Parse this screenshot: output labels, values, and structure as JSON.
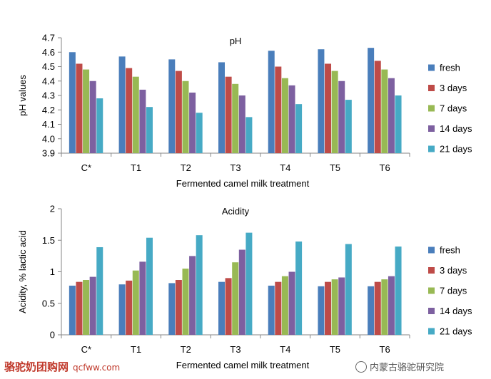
{
  "colors": {
    "fresh": "#4a7ebb",
    "3 days": "#be4b48",
    "7 days": "#98b954",
    "14 days": "#7d60a0",
    "21 days": "#46aac5",
    "axis": "#868686",
    "text": "#000000"
  },
  "chart_data": [
    {
      "type": "bar",
      "title": "pH",
      "xlabel": "Fermented camel milk treatment",
      "ylabel": "pH values",
      "categories": [
        "C*",
        "T1",
        "T2",
        "T3",
        "T4",
        "T5",
        "T6"
      ],
      "ylim": [
        3.9,
        4.7
      ],
      "yticks": [
        "3.9",
        "4.0",
        "4.1",
        "4.2",
        "4.3",
        "4.4",
        "4.5",
        "4.6",
        "4.7"
      ],
      "legend_position": "right",
      "grid": false,
      "series": [
        {
          "name": "fresh",
          "values": [
            4.6,
            4.57,
            4.55,
            4.53,
            4.61,
            4.62,
            4.63
          ]
        },
        {
          "name": "3 days",
          "values": [
            4.52,
            4.49,
            4.47,
            4.43,
            4.5,
            4.52,
            4.54
          ]
        },
        {
          "name": "7 days",
          "values": [
            4.48,
            4.43,
            4.4,
            4.38,
            4.42,
            4.47,
            4.48
          ]
        },
        {
          "name": "14 days",
          "values": [
            4.4,
            4.34,
            4.32,
            4.3,
            4.37,
            4.4,
            4.42
          ]
        },
        {
          "name": "21 days",
          "values": [
            4.28,
            4.22,
            4.18,
            4.15,
            4.24,
            4.27,
            4.3
          ]
        }
      ]
    },
    {
      "type": "bar",
      "title": "Acidity",
      "xlabel": "Fermented camel milk treatment",
      "ylabel": "Acidity, % lactic acid",
      "categories": [
        "C*",
        "T1",
        "T2",
        "T3",
        "T4",
        "T5",
        "T6"
      ],
      "ylim": [
        0,
        2
      ],
      "yticks": [
        "0",
        "0.5",
        "1",
        "1.5",
        "2"
      ],
      "legend_position": "right",
      "grid": false,
      "series": [
        {
          "name": "fresh",
          "values": [
            0.78,
            0.8,
            0.82,
            0.84,
            0.78,
            0.77,
            0.77
          ]
        },
        {
          "name": "3 days",
          "values": [
            0.84,
            0.86,
            0.87,
            0.9,
            0.84,
            0.84,
            0.84
          ]
        },
        {
          "name": "7 days",
          "values": [
            0.87,
            1.02,
            1.05,
            1.15,
            0.93,
            0.88,
            0.88
          ]
        },
        {
          "name": "14 days",
          "values": [
            0.92,
            1.16,
            1.25,
            1.35,
            1.0,
            0.91,
            0.93
          ]
        },
        {
          "name": "21 days",
          "values": [
            1.39,
            1.54,
            1.58,
            1.62,
            1.48,
            1.44,
            1.4
          ]
        }
      ]
    }
  ],
  "footer": {
    "left_text": "骆驼奶团购网",
    "left_url": "qcfww.com",
    "right_text": "内蒙古骆驼研究院"
  }
}
